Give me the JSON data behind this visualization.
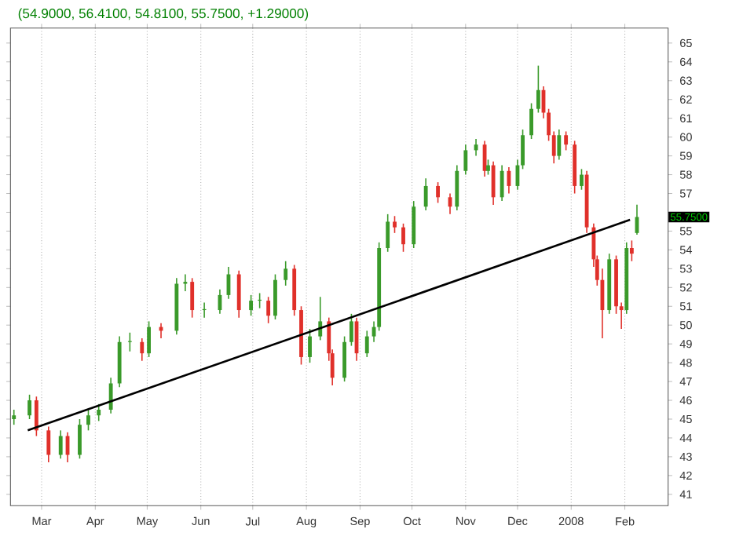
{
  "chart_data": {
    "type": "candlestick",
    "title": "(54.9000, 56.4100, 54.8100, 55.7500, +1.29000)",
    "x": [
      "2007-02-13",
      "2007-02-22",
      "2007-02-26",
      "2007-03-05",
      "2007-03-12",
      "2007-03-16",
      "2007-03-23",
      "2007-03-28",
      "2007-04-03",
      "2007-04-10",
      "2007-04-15",
      "2007-04-21",
      "2007-04-28",
      "2007-05-02",
      "2007-05-09",
      "2007-05-18",
      "2007-05-23",
      "2007-05-27",
      "2007-06-03",
      "2007-06-12",
      "2007-06-17",
      "2007-06-23",
      "2007-06-30",
      "2007-07-05",
      "2007-07-10",
      "2007-07-14",
      "2007-07-20",
      "2007-07-25",
      "2007-07-29",
      "2007-08-03",
      "2007-08-09",
      "2007-08-14",
      "2007-08-16",
      "2007-08-23",
      "2007-08-27",
      "2007-08-30",
      "2007-09-05",
      "2007-09-09",
      "2007-09-12",
      "2007-09-17",
      "2007-09-21",
      "2007-09-26",
      "2007-10-02",
      "2007-10-09",
      "2007-10-16",
      "2007-10-23",
      "2007-10-27",
      "2007-11-01",
      "2007-11-07",
      "2007-11-12",
      "2007-11-14",
      "2007-11-17",
      "2007-11-22",
      "2007-11-26",
      "2007-12-01",
      "2007-12-04",
      "2007-12-09",
      "2007-12-13",
      "2007-12-16",
      "2007-12-19",
      "2007-12-22",
      "2007-12-25",
      "2007-12-29",
      "2008-01-03",
      "2008-01-07",
      "2008-01-10",
      "2008-01-14",
      "2008-01-16",
      "2008-01-19",
      "2008-01-23",
      "2008-01-27",
      "2008-01-30",
      "2008-02-02",
      "2008-02-05",
      "2008-02-08"
    ],
    "ohlc": [
      [
        45.0,
        45.5,
        44.7,
        45.2
      ],
      [
        45.2,
        46.3,
        45.0,
        46.0
      ],
      [
        46.0,
        46.2,
        44.1,
        44.4
      ],
      [
        44.4,
        44.6,
        42.7,
        43.1
      ],
      [
        43.1,
        44.4,
        42.9,
        44.1
      ],
      [
        44.1,
        44.3,
        42.7,
        43.1
      ],
      [
        43.1,
        45.0,
        42.9,
        44.7
      ],
      [
        44.7,
        45.5,
        44.4,
        45.2
      ],
      [
        45.2,
        45.8,
        44.9,
        45.5
      ],
      [
        45.5,
        47.2,
        45.3,
        46.9
      ],
      [
        46.9,
        49.4,
        46.7,
        49.1
      ],
      [
        49.1,
        49.6,
        48.6,
        49.1
      ],
      [
        49.1,
        49.3,
        48.1,
        48.5
      ],
      [
        48.5,
        50.2,
        48.3,
        49.9
      ],
      [
        49.9,
        50.1,
        49.3,
        49.7
      ],
      [
        49.7,
        52.5,
        49.5,
        52.2
      ],
      [
        52.2,
        52.7,
        51.8,
        52.3
      ],
      [
        52.3,
        52.5,
        50.4,
        50.8
      ],
      [
        50.8,
        51.2,
        50.4,
        50.8
      ],
      [
        50.8,
        51.9,
        50.6,
        51.6
      ],
      [
        51.6,
        53.1,
        51.4,
        52.7
      ],
      [
        52.7,
        52.9,
        50.4,
        50.8
      ],
      [
        50.8,
        51.6,
        50.5,
        51.3
      ],
      [
        51.3,
        51.7,
        50.9,
        51.3
      ],
      [
        51.3,
        51.5,
        50.1,
        50.5
      ],
      [
        50.5,
        52.7,
        50.3,
        52.4
      ],
      [
        52.4,
        53.4,
        52.1,
        53.0
      ],
      [
        53.0,
        53.2,
        50.5,
        50.8
      ],
      [
        50.8,
        51.0,
        47.9,
        48.3
      ],
      [
        48.3,
        49.8,
        48.0,
        49.4
      ],
      [
        49.4,
        51.5,
        49.2,
        50.2
      ],
      [
        50.2,
        50.4,
        48.1,
        48.5
      ],
      [
        48.5,
        48.7,
        46.8,
        47.2
      ],
      [
        47.2,
        49.4,
        47.0,
        49.1
      ],
      [
        49.1,
        50.6,
        48.9,
        50.2
      ],
      [
        50.2,
        50.4,
        48.1,
        48.5
      ],
      [
        48.5,
        49.7,
        48.3,
        49.4
      ],
      [
        49.4,
        50.2,
        49.1,
        49.9
      ],
      [
        49.9,
        54.4,
        49.7,
        54.1
      ],
      [
        54.1,
        55.9,
        53.9,
        55.5
      ],
      [
        55.5,
        55.8,
        54.9,
        55.2
      ],
      [
        55.2,
        55.4,
        53.9,
        54.3
      ],
      [
        54.3,
        56.6,
        54.1,
        56.3
      ],
      [
        56.3,
        57.8,
        56.1,
        57.4
      ],
      [
        57.4,
        57.6,
        56.5,
        56.8
      ],
      [
        56.8,
        57.0,
        55.9,
        56.3
      ],
      [
        56.3,
        58.5,
        56.1,
        58.2
      ],
      [
        58.2,
        59.6,
        58.0,
        59.3
      ],
      [
        59.3,
        59.9,
        59.0,
        59.6
      ],
      [
        59.6,
        59.8,
        57.9,
        58.2
      ],
      [
        58.2,
        58.8,
        58.0,
        58.5
      ],
      [
        58.5,
        58.7,
        56.4,
        56.8
      ],
      [
        56.8,
        58.5,
        56.6,
        58.2
      ],
      [
        58.2,
        58.4,
        57.0,
        57.4
      ],
      [
        57.4,
        58.8,
        57.2,
        58.5
      ],
      [
        58.5,
        60.4,
        58.3,
        60.1
      ],
      [
        60.1,
        61.8,
        59.9,
        61.5
      ],
      [
        61.5,
        63.8,
        61.3,
        62.5
      ],
      [
        62.5,
        62.7,
        61.0,
        61.3
      ],
      [
        61.3,
        61.5,
        59.8,
        60.1
      ],
      [
        60.1,
        60.3,
        58.6,
        59.0
      ],
      [
        59.0,
        60.4,
        58.8,
        60.1
      ],
      [
        60.1,
        60.3,
        59.3,
        59.6
      ],
      [
        59.6,
        59.8,
        57.0,
        57.4
      ],
      [
        57.4,
        58.3,
        57.2,
        58.0
      ],
      [
        58.0,
        58.2,
        54.9,
        55.2
      ],
      [
        55.2,
        55.4,
        53.1,
        53.5
      ],
      [
        53.5,
        53.7,
        52.1,
        52.4
      ],
      [
        52.4,
        53.0,
        49.3,
        50.8
      ],
      [
        50.8,
        53.8,
        50.6,
        53.5
      ],
      [
        53.5,
        53.7,
        50.6,
        51.0
      ],
      [
        51.0,
        51.2,
        49.8,
        50.8
      ],
      [
        50.8,
        54.4,
        50.6,
        54.1
      ],
      [
        54.1,
        54.5,
        53.4,
        53.8
      ],
      [
        54.9,
        56.41,
        54.81,
        55.75
      ]
    ],
    "series": [
      {
        "type": "line",
        "x": [
          "2007-02-21",
          "2008-02-04"
        ],
        "values": [
          44.4,
          55.6
        ],
        "color": "#000000"
      }
    ],
    "annotations": [
      "55.7500"
    ],
    "xlim": [
      "2007-02-11",
      "2008-02-26"
    ],
    "xticks": [
      {
        "value": "2007-03-01",
        "label": "Mar"
      },
      {
        "value": "2007-04-01",
        "label": "Apr"
      },
      {
        "value": "2007-05-01",
        "label": "May"
      },
      {
        "value": "2007-06-01",
        "label": "Jun"
      },
      {
        "value": "2007-07-01",
        "label": "Jul"
      },
      {
        "value": "2007-08-01",
        "label": "Aug"
      },
      {
        "value": "2007-09-01",
        "label": "Sep"
      },
      {
        "value": "2007-10-01",
        "label": "Oct"
      },
      {
        "value": "2007-11-01",
        "label": "Nov"
      },
      {
        "value": "2007-12-01",
        "label": "Dec"
      },
      {
        "value": "2008-01-01",
        "label": "2008"
      },
      {
        "value": "2008-02-01",
        "label": "Feb"
      }
    ],
    "ylim": [
      40.4,
      65.8
    ],
    "yticks": [
      41,
      42,
      43,
      44,
      45,
      46,
      47,
      48,
      49,
      50,
      51,
      52,
      53,
      54,
      55,
      {
        "value": 56,
        "label": null
      },
      57,
      58,
      59,
      60,
      61,
      62,
      63,
      64,
      65
    ],
    "grid": "x"
  }
}
